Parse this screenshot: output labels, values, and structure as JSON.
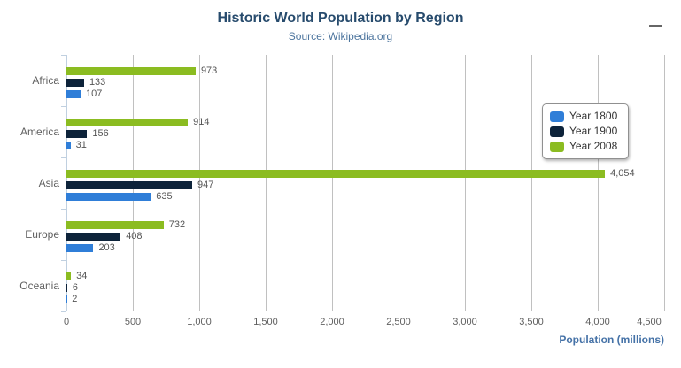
{
  "header": {
    "title": "Historic World Population by Region",
    "subtitle": "Source: Wikipedia.org"
  },
  "menu": {
    "icon": "hamburger-menu-icon"
  },
  "chart_data": {
    "type": "bar",
    "orientation": "horizontal",
    "title": "Historic World Population by Region",
    "subtitle": "Source: Wikipedia.org",
    "categories": [
      "Africa",
      "America",
      "Asia",
      "Europe",
      "Oceania"
    ],
    "series": [
      {
        "name": "Year 1800",
        "color": "#2f7ed8",
        "values": [
          107,
          31,
          635,
          203,
          2
        ]
      },
      {
        "name": "Year 1900",
        "color": "#0d233a",
        "values": [
          133,
          156,
          947,
          408,
          6
        ]
      },
      {
        "name": "Year 2008",
        "color": "#8bbc21",
        "values": [
          973,
          914,
          4054,
          732,
          34
        ]
      }
    ],
    "series_display_order_top_to_bottom": [
      "Year 2008",
      "Year 1900",
      "Year 1800"
    ],
    "data_labels": true,
    "xlabel": "Population (millions)",
    "value_axis": {
      "min": 0,
      "max": 4500,
      "tick_interval": 500,
      "ticks": [
        0,
        500,
        1000,
        1500,
        2000,
        2500,
        3000,
        3500,
        4000,
        4500
      ]
    },
    "grid": true,
    "legend": {
      "position": "right",
      "items": [
        "Year 1800",
        "Year 1900",
        "Year 2008"
      ]
    }
  },
  "colors": {
    "title": "#274b6d",
    "subtitle": "#4d759e",
    "axis_label": "#606060",
    "axis_title": "#4572a7",
    "gridline": "#c0c0c0",
    "axis_line": "#c0d0e0",
    "data_label": "#555555",
    "legend_border": "#909090",
    "legend_text": "#333333",
    "menu_icon": "#666666"
  }
}
